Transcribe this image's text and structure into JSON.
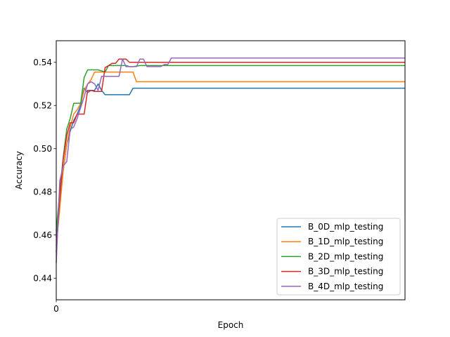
{
  "chart_data": {
    "type": "line",
    "title": "",
    "xlabel": "Epoch",
    "ylabel": "Accuracy",
    "xlim": [
      0,
      100
    ],
    "ylim": [
      0.43,
      0.55
    ],
    "xticks": [
      0
    ],
    "yticks": [
      0.44,
      0.46,
      0.48,
      0.5,
      0.52,
      0.54
    ],
    "ytick_labels": [
      "0.44",
      "0.46",
      "0.48",
      "0.50",
      "0.52",
      "0.54"
    ],
    "grid": false,
    "legend_position": "lower-right",
    "series": [
      {
        "name": "B_0D_mlp_testing",
        "color": "#1f77b4",
        "points": [
          [
            0,
            0.459
          ],
          [
            1,
            0.474
          ],
          [
            2,
            0.49
          ],
          [
            3,
            0.502
          ],
          [
            4,
            0.508
          ],
          [
            5,
            0.513
          ],
          [
            6,
            0.516
          ],
          [
            7,
            0.52
          ],
          [
            8,
            0.528
          ],
          [
            9,
            0.526
          ],
          [
            10,
            0.527
          ],
          [
            11,
            0.527
          ],
          [
            12,
            0.53
          ],
          [
            13,
            0.527
          ],
          [
            14,
            0.525
          ],
          [
            20,
            0.525
          ],
          [
            21,
            0.525
          ],
          [
            22,
            0.528
          ],
          [
            100,
            0.528
          ]
        ]
      },
      {
        "name": "B_1D_mlp_testing",
        "color": "#ff7f0e",
        "points": [
          [
            0,
            0.455
          ],
          [
            1,
            0.472
          ],
          [
            2,
            0.49
          ],
          [
            3,
            0.502
          ],
          [
            4,
            0.51
          ],
          [
            5,
            0.516
          ],
          [
            6,
            0.518
          ],
          [
            7,
            0.521
          ],
          [
            8,
            0.527
          ],
          [
            9,
            0.53
          ],
          [
            10,
            0.532
          ],
          [
            11,
            0.5355
          ],
          [
            12,
            0.5355
          ],
          [
            22,
            0.5355
          ],
          [
            23,
            0.531
          ],
          [
            100,
            0.531
          ]
        ]
      },
      {
        "name": "B_2D_mlp_testing",
        "color": "#2ca02c",
        "points": [
          [
            0,
            0.462
          ],
          [
            1,
            0.48
          ],
          [
            2,
            0.496
          ],
          [
            3,
            0.509
          ],
          [
            4,
            0.514
          ],
          [
            5,
            0.521
          ],
          [
            6,
            0.521
          ],
          [
            7,
            0.521
          ],
          [
            8,
            0.533
          ],
          [
            9,
            0.5365
          ],
          [
            10,
            0.5365
          ],
          [
            11,
            0.5365
          ],
          [
            12,
            0.5365
          ],
          [
            13,
            0.536
          ],
          [
            14,
            0.5355
          ],
          [
            15,
            0.5385
          ],
          [
            20,
            0.5385
          ],
          [
            21,
            0.538
          ],
          [
            22,
            0.538
          ],
          [
            24,
            0.5385
          ],
          [
            100,
            0.5385
          ]
        ]
      },
      {
        "name": "B_3D_mlp_testing",
        "color": "#d62728",
        "points": [
          [
            0,
            0.452
          ],
          [
            1,
            0.478
          ],
          [
            2,
            0.495
          ],
          [
            3,
            0.506
          ],
          [
            4,
            0.512
          ],
          [
            5,
            0.512
          ],
          [
            6,
            0.516
          ],
          [
            7,
            0.516
          ],
          [
            8,
            0.516
          ],
          [
            9,
            0.527
          ],
          [
            10,
            0.527
          ],
          [
            11,
            0.5265
          ],
          [
            12,
            0.5265
          ],
          [
            13,
            0.5265
          ],
          [
            14,
            0.5375
          ],
          [
            15,
            0.5385
          ],
          [
            16,
            0.5395
          ],
          [
            17,
            0.5395
          ],
          [
            18,
            0.5415
          ],
          [
            19,
            0.5415
          ],
          [
            20,
            0.5415
          ],
          [
            21,
            0.54
          ],
          [
            100,
            0.54
          ]
        ]
      },
      {
        "name": "B_4D_mlp_testing",
        "color": "#9467bd",
        "points": [
          [
            0,
            0.447
          ],
          [
            1,
            0.485
          ],
          [
            2,
            0.492
          ],
          [
            3,
            0.494
          ],
          [
            4,
            0.509
          ],
          [
            5,
            0.51
          ],
          [
            6,
            0.514
          ],
          [
            7,
            0.519
          ],
          [
            8,
            0.524
          ],
          [
            9,
            0.53
          ],
          [
            10,
            0.531
          ],
          [
            11,
            0.53
          ],
          [
            12,
            0.527
          ],
          [
            13,
            0.5335
          ],
          [
            14,
            0.5335
          ],
          [
            15,
            0.5335
          ],
          [
            16,
            0.5335
          ],
          [
            17,
            0.5335
          ],
          [
            18,
            0.5335
          ],
          [
            19,
            0.5415
          ],
          [
            20,
            0.538
          ],
          [
            21,
            0.538
          ],
          [
            22,
            0.538
          ],
          [
            23,
            0.538
          ],
          [
            24,
            0.5415
          ],
          [
            25,
            0.5415
          ],
          [
            26,
            0.538
          ],
          [
            27,
            0.538
          ],
          [
            28,
            0.538
          ],
          [
            29,
            0.538
          ],
          [
            30,
            0.538
          ],
          [
            31,
            0.539
          ],
          [
            32,
            0.539
          ],
          [
            33,
            0.542
          ],
          [
            100,
            0.542
          ]
        ]
      }
    ]
  }
}
